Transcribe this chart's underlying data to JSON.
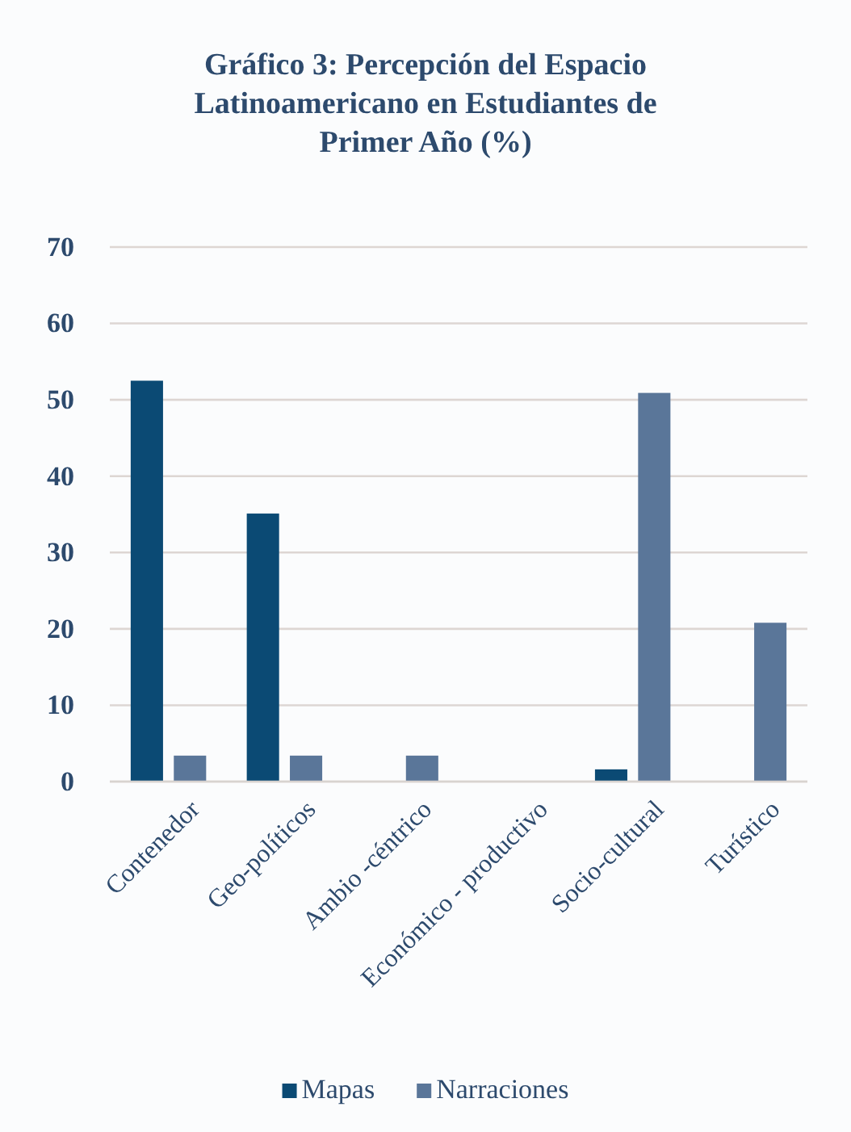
{
  "chart_data": {
    "type": "bar",
    "title": "Gráfico  3: Percepción del Espacio Latinoamericano  en Estudiantes  de Primer Año (%)",
    "categories": [
      "Contenedor",
      "Geo-políticos",
      "Ambio -céntrico",
      "Económico - productivo",
      "Socio-cultural",
      "Turístico"
    ],
    "series": [
      {
        "name": "Mapas",
        "color": "#0b4a74",
        "values": [
          52.5,
          35.1,
          null,
          null,
          1.6,
          null
        ]
      },
      {
        "name": "Narraciones",
        "color": "#5a7699",
        "values": [
          3.4,
          3.4,
          3.4,
          null,
          50.9,
          20.8
        ]
      }
    ],
    "ylim": [
      0,
      70
    ],
    "yticks": [
      0,
      10,
      20,
      30,
      40,
      50,
      60,
      70
    ],
    "grid": "y",
    "legend": "bottom"
  }
}
